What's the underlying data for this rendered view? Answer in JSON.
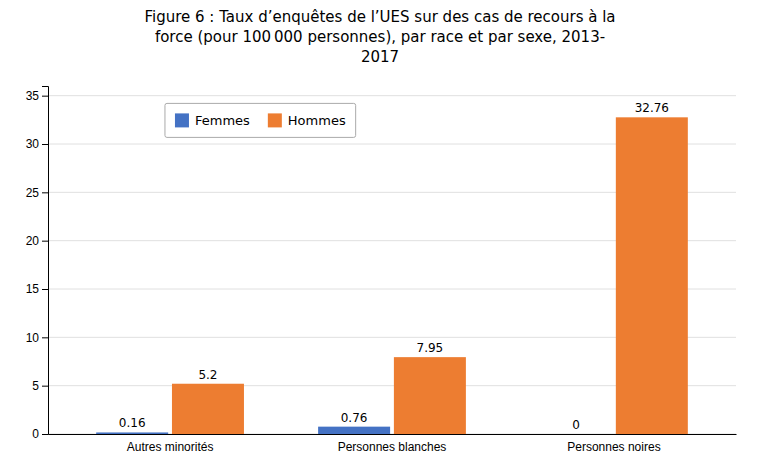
{
  "chart_data": {
    "type": "bar",
    "title": "Figure 6 : Taux d’enquêtes de l’UES sur des cas de recours à la\nforce (pour 100 000 personnes), par race et par sexe, 2013-\n2017",
    "categories": [
      "Autres minorités",
      "Personnes blanches",
      "Personnes noires"
    ],
    "series": [
      {
        "name": "Femmes",
        "color": "#4472C4",
        "values": [
          0.16,
          0.76,
          0
        ]
      },
      {
        "name": "Hommes",
        "color": "#ED7D31",
        "values": [
          5.2,
          7.95,
          32.76
        ]
      }
    ],
    "ylim": [
      0,
      36
    ],
    "yticks": [
      0,
      5,
      10,
      15,
      20,
      25,
      30,
      35
    ],
    "grid": true,
    "legend": "upper left",
    "data_labels": true
  }
}
